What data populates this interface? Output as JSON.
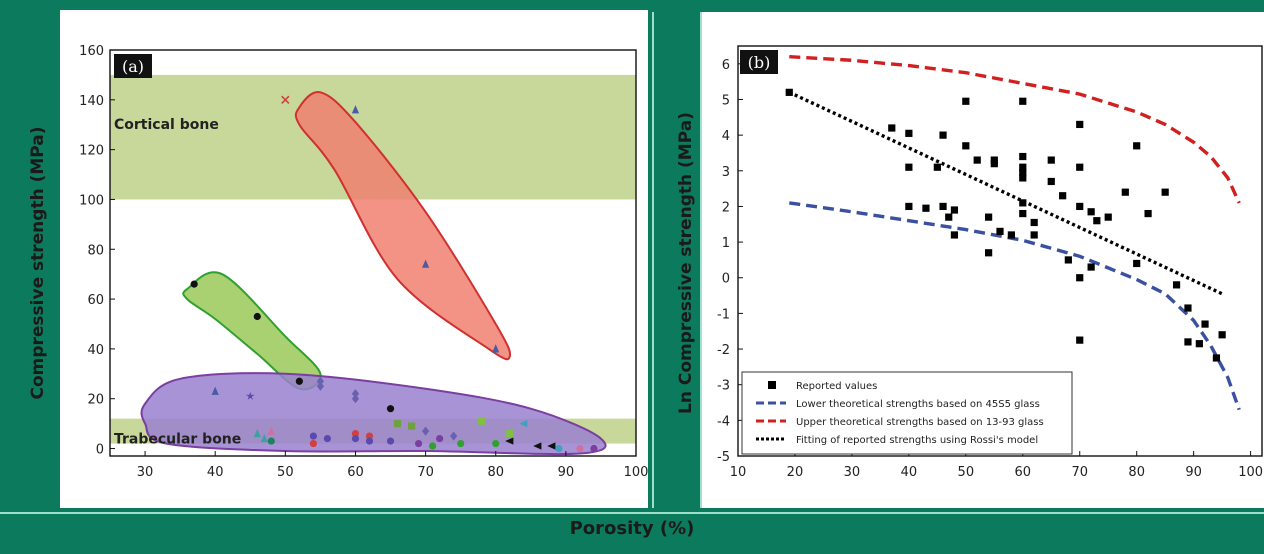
{
  "xlabel": "Porosity (%)",
  "chart_data": [
    {
      "type": "scatter",
      "panel": "(a)",
      "ylabel": "Compressive strength (MPa)",
      "xlim": [
        25,
        100
      ],
      "ylim": [
        -3,
        160
      ],
      "xticks": [
        30,
        40,
        50,
        60,
        70,
        80,
        90,
        100
      ],
      "yticks": [
        0,
        20,
        40,
        60,
        80,
        100,
        120,
        140,
        160
      ],
      "bands": [
        {
          "name": "Cortical bone",
          "y": [
            100,
            150
          ],
          "color": "#c7d89a"
        },
        {
          "name": "Trabecular bone",
          "y": [
            2,
            12
          ],
          "color": "#c7d89a"
        }
      ],
      "regions": [
        {
          "color": "#f08070",
          "edge": "#d03030",
          "outline": [
            [
              52,
              137
            ],
            [
              55,
              143
            ],
            [
              60,
              131
            ],
            [
              70,
              95
            ],
            [
              80,
              50
            ],
            [
              82,
              37
            ],
            [
              79,
              40
            ],
            [
              66,
              68
            ],
            [
              57,
              112
            ],
            [
              52,
              130
            ]
          ]
        },
        {
          "color": "#9ac858",
          "edge": "#30a030",
          "outline": [
            [
              36,
              64
            ],
            [
              41,
              70
            ],
            [
              50,
              45
            ],
            [
              55,
              30
            ],
            [
              52,
              24
            ],
            [
              46,
              38
            ],
            [
              40,
              52
            ],
            [
              36,
              60
            ]
          ]
        },
        {
          "color": "#9a80d0",
          "edge": "#7a3fa0",
          "outline": [
            [
              30,
              18
            ],
            [
              35,
              28
            ],
            [
              50,
              30
            ],
            [
              70,
              24
            ],
            [
              85,
              16
            ],
            [
              95,
              4
            ],
            [
              92,
              -2
            ],
            [
              70,
              -1
            ],
            [
              50,
              -1
            ],
            [
              33,
              2
            ],
            [
              30,
              10
            ]
          ]
        }
      ],
      "points": [
        {
          "x": 37,
          "y": 66,
          "color": "#111111",
          "marker": "circle"
        },
        {
          "x": 46,
          "y": 53,
          "color": "#111111",
          "marker": "circle"
        },
        {
          "x": 52,
          "y": 27,
          "color": "#111111",
          "marker": "circle"
        },
        {
          "x": 65,
          "y": 16,
          "color": "#111111",
          "marker": "circle"
        },
        {
          "x": 50,
          "y": 140,
          "color": "#d04040",
          "marker": "cross"
        },
        {
          "x": 60,
          "y": 136,
          "color": "#4a5aa8",
          "marker": "triangle"
        },
        {
          "x": 70,
          "y": 74,
          "color": "#4a5aa8",
          "marker": "triangle"
        },
        {
          "x": 80,
          "y": 40,
          "color": "#4a5aa8",
          "marker": "triangle"
        },
        {
          "x": 40,
          "y": 23,
          "color": "#4a5aa8",
          "marker": "triangle"
        },
        {
          "x": 45,
          "y": 21,
          "color": "#5a4ab0",
          "marker": "star"
        },
        {
          "x": 55,
          "y": 27,
          "color": "#6a60b0",
          "marker": "diamond"
        },
        {
          "x": 55,
          "y": 25,
          "color": "#6a60b0",
          "marker": "diamond"
        },
        {
          "x": 60,
          "y": 22,
          "color": "#6a60b0",
          "marker": "diamond"
        },
        {
          "x": 60,
          "y": 20,
          "color": "#6a60b0",
          "marker": "diamond"
        },
        {
          "x": 46,
          "y": 6,
          "color": "#40a0a0",
          "marker": "triangle"
        },
        {
          "x": 47,
          "y": 4,
          "color": "#40a0a0",
          "marker": "triangle"
        },
        {
          "x": 48,
          "y": 7,
          "color": "#d070a0",
          "marker": "triangle"
        },
        {
          "x": 48,
          "y": 3,
          "color": "#208060",
          "marker": "circle"
        },
        {
          "x": 54,
          "y": 5,
          "color": "#5a4ab0",
          "marker": "circle"
        },
        {
          "x": 54,
          "y": 2,
          "color": "#d04040",
          "marker": "circle"
        },
        {
          "x": 56,
          "y": 4,
          "color": "#5a4ab0",
          "marker": "circle"
        },
        {
          "x": 60,
          "y": 6,
          "color": "#d04040",
          "marker": "circle"
        },
        {
          "x": 60,
          "y": 4,
          "color": "#5a4ab0",
          "marker": "circle"
        },
        {
          "x": 62,
          "y": 5,
          "color": "#d04040",
          "marker": "circle"
        },
        {
          "x": 62,
          "y": 3,
          "color": "#5a4ab0",
          "marker": "circle"
        },
        {
          "x": 65,
          "y": 3,
          "color": "#5a4ab0",
          "marker": "circle"
        },
        {
          "x": 66,
          "y": 10,
          "color": "#70a040",
          "marker": "square"
        },
        {
          "x": 68,
          "y": 9,
          "color": "#70a040",
          "marker": "square"
        },
        {
          "x": 69,
          "y": 2,
          "color": "#7a3fa0",
          "marker": "circle"
        },
        {
          "x": 70,
          "y": 7,
          "color": "#6a60b0",
          "marker": "diamond"
        },
        {
          "x": 71,
          "y": 1,
          "color": "#30a030",
          "marker": "circle"
        },
        {
          "x": 72,
          "y": 4,
          "color": "#7a3fa0",
          "marker": "circle"
        },
        {
          "x": 74,
          "y": 5,
          "color": "#6a60b0",
          "marker": "diamond"
        },
        {
          "x": 75,
          "y": 2,
          "color": "#30a030",
          "marker": "circle"
        },
        {
          "x": 78,
          "y": 11,
          "color": "#80c040",
          "marker": "square"
        },
        {
          "x": 80,
          "y": 2,
          "color": "#30a030",
          "marker": "circle"
        },
        {
          "x": 82,
          "y": 3,
          "color": "#111111",
          "marker": "tri-left"
        },
        {
          "x": 82,
          "y": 6,
          "color": "#80c040",
          "marker": "square"
        },
        {
          "x": 84,
          "y": 10,
          "color": "#40a0c0",
          "marker": "tri-left"
        },
        {
          "x": 86,
          "y": 1,
          "color": "#111111",
          "marker": "tri-left"
        },
        {
          "x": 88,
          "y": 1,
          "color": "#111111",
          "marker": "tri-left"
        },
        {
          "x": 89,
          "y": 0,
          "color": "#40a0c0",
          "marker": "circle"
        },
        {
          "x": 92,
          "y": 0,
          "color": "#d070a0",
          "marker": "circle"
        },
        {
          "x": 94,
          "y": 0,
          "color": "#7a3fa0",
          "marker": "circle"
        }
      ]
    },
    {
      "type": "scatter",
      "panel": "(b)",
      "ylabel": "Ln Compressive strength (MPa)",
      "xlim": [
        10,
        102
      ],
      "ylim": [
        -5,
        6.5
      ],
      "xticks": [
        10,
        20,
        30,
        40,
        50,
        60,
        70,
        80,
        90,
        100
      ],
      "yticks": [
        -5,
        -4,
        -3,
        -2,
        -1,
        0,
        1,
        2,
        3,
        4,
        5,
        6
      ],
      "series": [
        {
          "name": "Reported values",
          "marker": "square",
          "color": "#000000",
          "points": [
            [
              19,
              5.2
            ],
            [
              37,
              4.2
            ],
            [
              40,
              4.05
            ],
            [
              40,
              3.1
            ],
            [
              40,
              2.0
            ],
            [
              43,
              1.95
            ],
            [
              45,
              3.1
            ],
            [
              46,
              4.0
            ],
            [
              46,
              2.0
            ],
            [
              47,
              1.7
            ],
            [
              48,
              1.9
            ],
            [
              48,
              1.2
            ],
            [
              50,
              4.95
            ],
            [
              50,
              3.7
            ],
            [
              52,
              3.3
            ],
            [
              54,
              1.7
            ],
            [
              54,
              0.7
            ],
            [
              55,
              3.3
            ],
            [
              55,
              3.2
            ],
            [
              56,
              1.3
            ],
            [
              58,
              1.2
            ],
            [
              60,
              4.95
            ],
            [
              60,
              3.4
            ],
            [
              60,
              3.1
            ],
            [
              60,
              2.95
            ],
            [
              60,
              2.8
            ],
            [
              60,
              2.1
            ],
            [
              60,
              1.8
            ],
            [
              62,
              1.55
            ],
            [
              62,
              1.2
            ],
            [
              65,
              3.3
            ],
            [
              65,
              2.7
            ],
            [
              67,
              2.3
            ],
            [
              68,
              0.5
            ],
            [
              70,
              4.3
            ],
            [
              70,
              3.1
            ],
            [
              70,
              2.0
            ],
            [
              70,
              0.0
            ],
            [
              70,
              -1.75
            ],
            [
              72,
              1.85
            ],
            [
              72,
              0.3
            ],
            [
              73,
              1.6
            ],
            [
              75,
              1.7
            ],
            [
              78,
              2.4
            ],
            [
              80,
              3.7
            ],
            [
              80,
              0.4
            ],
            [
              82,
              1.8
            ],
            [
              85,
              2.4
            ],
            [
              87,
              -0.2
            ],
            [
              89,
              -0.85
            ],
            [
              89,
              -1.8
            ],
            [
              91,
              -1.85
            ],
            [
              92,
              -1.3
            ],
            [
              94,
              -2.25
            ],
            [
              95,
              -1.6
            ]
          ]
        },
        {
          "name": "Lower theoretical strengths based on 45S5 glass",
          "marker": "line",
          "dash": "dashed",
          "color": "#3a50a0",
          "points": [
            [
              19,
              2.1
            ],
            [
              30,
              1.85
            ],
            [
              40,
              1.6
            ],
            [
              50,
              1.35
            ],
            [
              60,
              1.05
            ],
            [
              70,
              0.6
            ],
            [
              80,
              -0.05
            ],
            [
              85,
              -0.45
            ],
            [
              90,
              -1.2
            ],
            [
              93,
              -1.9
            ],
            [
              96,
              -2.8
            ],
            [
              98,
              -3.7
            ]
          ]
        },
        {
          "name": "Upper theoretical strengths based on 13-93 glass",
          "marker": "line",
          "dash": "dashed",
          "color": "#d02020",
          "points": [
            [
              19,
              6.2
            ],
            [
              30,
              6.1
            ],
            [
              40,
              5.95
            ],
            [
              50,
              5.75
            ],
            [
              60,
              5.45
            ],
            [
              70,
              5.15
            ],
            [
              80,
              4.65
            ],
            [
              85,
              4.3
            ],
            [
              90,
              3.8
            ],
            [
              93,
              3.4
            ],
            [
              96,
              2.8
            ],
            [
              98,
              2.1
            ]
          ]
        },
        {
          "name": "Fitting of reported strengths using Rossi's model",
          "marker": "line",
          "dash": "dotted",
          "color": "#000000",
          "points": [
            [
              19,
              5.2
            ],
            [
              95,
              -0.45
            ]
          ]
        }
      ],
      "legend": "bottom-left"
    }
  ]
}
